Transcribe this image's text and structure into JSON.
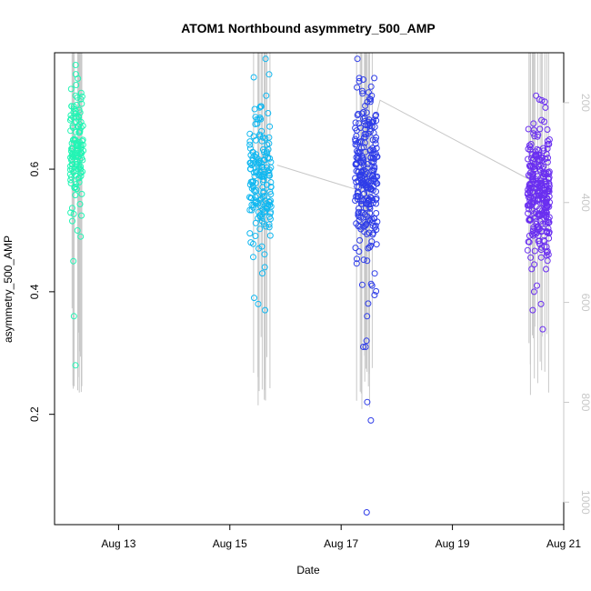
{
  "chart_data": {
    "type": "scatter",
    "title": "ATOM1 Northbound asymmetry_500_AMP",
    "xlabel": "Date",
    "ylabel": "asymmetry_500_AMP",
    "xlim": [
      11.85,
      21.0
    ],
    "ylim": [
      0.02,
      0.79
    ],
    "x_ticks": [
      13,
      15,
      17,
      19,
      21
    ],
    "x_tick_labels": [
      "Aug 13",
      "Aug 15",
      "Aug 17",
      "Aug 19",
      "Aug 21"
    ],
    "y_ticks": [
      0.2,
      0.4,
      0.6
    ],
    "y_tick_labels": [
      "0.2",
      "0.4",
      "0.6"
    ],
    "y2_range": [
      1045,
      100
    ],
    "y2_ticks": [
      200,
      400,
      600,
      800,
      1000
    ],
    "y2_tick_labels": [
      "200",
      "400",
      "600",
      "800",
      "1000"
    ],
    "grid": false,
    "clusters": [
      {
        "name": "Aug 12",
        "x_center": 12.25,
        "spread": 0.12,
        "n": 130,
        "y_mean": 0.63,
        "y_sd": 0.05,
        "color": "#22f5b4",
        "outliers": [
          0.77,
          0.72,
          0.45,
          0.36,
          0.28,
          0.49,
          0.5
        ],
        "line_top": 100,
        "line_bottom": [
          640,
          720,
          790,
          820,
          830
        ]
      },
      {
        "name": "Aug 15",
        "x_center": 15.55,
        "spread": 0.2,
        "n": 170,
        "y_mean": 0.59,
        "y_sd": 0.055,
        "color": "#12b8f0",
        "outliers": [
          0.75,
          0.72,
          0.38,
          0.39,
          0.37,
          0.43,
          0.44
        ],
        "line_top": 100,
        "line_bottom": [
          690,
          720,
          760,
          780,
          800,
          810,
          830
        ]
      },
      {
        "name": "Aug 17",
        "x_center": 17.45,
        "spread": 0.2,
        "n": 260,
        "y_mean": 0.58,
        "y_sd": 0.07,
        "color": "#2f3de8",
        "outliers": [
          0.04,
          0.19,
          0.22,
          0.31,
          0.32,
          0.31,
          0.36,
          0.41,
          0.72,
          0.71
        ],
        "line_top": 100,
        "line_bottom": [
          720,
          760,
          790,
          810,
          830
        ]
      },
      {
        "name": "Aug 20",
        "x_center": 20.55,
        "spread": 0.2,
        "n": 280,
        "y_mean": 0.56,
        "y_sd": 0.055,
        "color": "#6a2ff0",
        "outliers": [
          0.72,
          0.71,
          0.68,
          0.37,
          0.38,
          0.4,
          0.41
        ],
        "line_top": 100,
        "line_bottom": [
          700,
          720,
          760,
          780,
          800,
          810
        ]
      }
    ],
    "connector_line": [
      {
        "x": 15.85,
        "y2": 325
      },
      {
        "x": 17.3,
        "y2": 375
      },
      {
        "x": 17.7,
        "y2": 195
      },
      {
        "x": 20.4,
        "y2": 355
      }
    ],
    "colors": {
      "axis": "#000000",
      "right_axis": "#c8c8c8",
      "vertical_lines": "#c8c8c8"
    }
  }
}
